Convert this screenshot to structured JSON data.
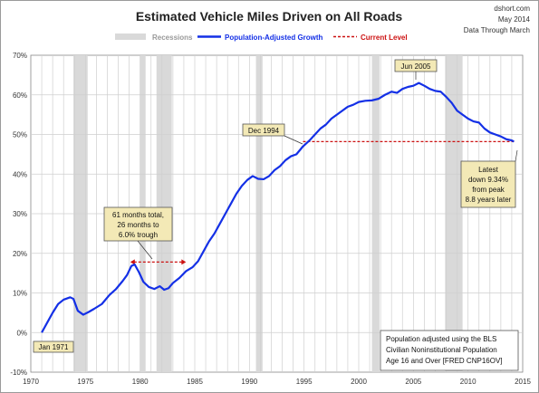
{
  "header": {
    "title": "Estimated Vehicle Miles Driven on All Roads",
    "source": "dshort.com",
    "date": "May 2014",
    "through": "Data Through March"
  },
  "legend": {
    "recessions": "Recessions",
    "series": "Population-Adjusted Growth",
    "current": "Current Level"
  },
  "colors": {
    "line": "#1430e6",
    "current": "#cc1111",
    "recession": "#d9d9d9",
    "callout": "#f3e9b6"
  },
  "annotations": {
    "start": "Jan 1971",
    "dec1994": "Dec 1994",
    "peak": "Jun 2005",
    "trough": [
      "61 months total,",
      "26 months to",
      "6.0% trough"
    ],
    "latest": [
      "Latest",
      "down 9.34%",
      "from peak",
      "8.8 years later"
    ],
    "note": [
      "Population adjusted using the BLS",
      "Civilian Noninstitutional Population",
      "Age 16 and Over [FRED CNP16OV]"
    ]
  },
  "chart_data": {
    "type": "line",
    "title": "Estimated Vehicle Miles Driven on All Roads",
    "xlim": [
      1970,
      2015
    ],
    "ylim": [
      -10,
      70
    ],
    "x_ticks": [
      1970,
      1975,
      1980,
      1985,
      1990,
      1995,
      2000,
      2005,
      2010,
      2015
    ],
    "y_ticks": [
      -10,
      0,
      10,
      20,
      30,
      40,
      50,
      60,
      70
    ],
    "y_tick_labels": [
      "-10%",
      "0%",
      "10%",
      "20%",
      "30%",
      "40%",
      "50%",
      "60%",
      "70%"
    ],
    "grid": true,
    "legend_position": "top",
    "recessions": [
      [
        1973.9,
        1975.2
      ],
      [
        1980.0,
        1980.5
      ],
      [
        1981.5,
        1982.9
      ],
      [
        1990.6,
        1991.2
      ],
      [
        2001.2,
        2001.9
      ],
      [
        2007.9,
        2009.5
      ]
    ],
    "current_level": {
      "value": 48.2,
      "from": 1994.9,
      "to": 2014.2
    },
    "trough_span": {
      "value": 17.8,
      "from": 1979.1,
      "to": 1984.2
    },
    "series": [
      {
        "name": "Population-Adjusted Growth",
        "points": [
          [
            1971.0,
            0
          ],
          [
            1971.5,
            2.5
          ],
          [
            1972.0,
            5.0
          ],
          [
            1972.5,
            7.2
          ],
          [
            1973.0,
            8.3
          ],
          [
            1973.6,
            8.9
          ],
          [
            1973.9,
            8.5
          ],
          [
            1974.3,
            5.5
          ],
          [
            1974.8,
            4.5
          ],
          [
            1975.3,
            5.2
          ],
          [
            1975.8,
            6.0
          ],
          [
            1976.5,
            7.2
          ],
          [
            1977.2,
            9.5
          ],
          [
            1977.8,
            11.0
          ],
          [
            1978.4,
            13.0
          ],
          [
            1978.8,
            14.5
          ],
          [
            1979.2,
            16.8
          ],
          [
            1979.5,
            17.2
          ],
          [
            1979.9,
            15.2
          ],
          [
            1980.3,
            12.8
          ],
          [
            1980.8,
            11.5
          ],
          [
            1981.3,
            11.0
          ],
          [
            1981.8,
            11.7
          ],
          [
            1982.2,
            10.8
          ],
          [
            1982.6,
            11.2
          ],
          [
            1983.0,
            12.5
          ],
          [
            1983.6,
            13.8
          ],
          [
            1984.2,
            15.5
          ],
          [
            1984.8,
            16.5
          ],
          [
            1985.3,
            18.0
          ],
          [
            1985.8,
            20.5
          ],
          [
            1986.3,
            23.0
          ],
          [
            1986.8,
            25.0
          ],
          [
            1987.3,
            27.5
          ],
          [
            1987.8,
            30.0
          ],
          [
            1988.3,
            32.5
          ],
          [
            1988.8,
            35.0
          ],
          [
            1989.3,
            37.0
          ],
          [
            1989.8,
            38.5
          ],
          [
            1990.3,
            39.5
          ],
          [
            1990.8,
            38.8
          ],
          [
            1991.3,
            38.7
          ],
          [
            1991.8,
            39.5
          ],
          [
            1992.3,
            41.0
          ],
          [
            1992.8,
            42.0
          ],
          [
            1993.3,
            43.5
          ],
          [
            1993.8,
            44.5
          ],
          [
            1994.3,
            45.0
          ],
          [
            1994.9,
            47.0
          ],
          [
            1995.5,
            48.5
          ],
          [
            1996.0,
            50.0
          ],
          [
            1996.5,
            51.5
          ],
          [
            1997.0,
            52.5
          ],
          [
            1997.5,
            54.0
          ],
          [
            1998.0,
            55.0
          ],
          [
            1998.5,
            56.0
          ],
          [
            1999.0,
            57.0
          ],
          [
            1999.5,
            57.5
          ],
          [
            2000.0,
            58.2
          ],
          [
            2000.6,
            58.5
          ],
          [
            2001.2,
            58.6
          ],
          [
            2001.8,
            59.0
          ],
          [
            2002.4,
            60.0
          ],
          [
            2003.0,
            60.8
          ],
          [
            2003.5,
            60.5
          ],
          [
            2004.0,
            61.5
          ],
          [
            2004.5,
            62.0
          ],
          [
            2005.0,
            62.3
          ],
          [
            2005.5,
            63.0
          ],
          [
            2006.0,
            62.3
          ],
          [
            2006.5,
            61.5
          ],
          [
            2007.0,
            61.0
          ],
          [
            2007.5,
            60.8
          ],
          [
            2008.0,
            59.5
          ],
          [
            2008.5,
            58.0
          ],
          [
            2009.0,
            56.0
          ],
          [
            2009.5,
            55.0
          ],
          [
            2010.0,
            54.0
          ],
          [
            2010.5,
            53.3
          ],
          [
            2011.0,
            53.0
          ],
          [
            2011.5,
            51.5
          ],
          [
            2012.0,
            50.5
          ],
          [
            2012.5,
            50.0
          ],
          [
            2013.0,
            49.5
          ],
          [
            2013.5,
            48.8
          ],
          [
            2014.0,
            48.5
          ],
          [
            2014.2,
            48.2
          ]
        ]
      }
    ]
  }
}
